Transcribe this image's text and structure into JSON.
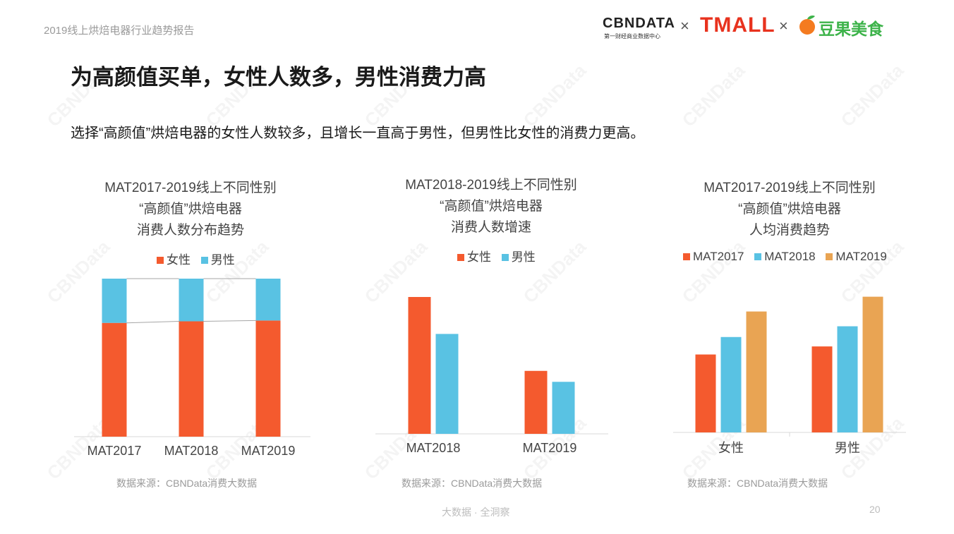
{
  "header": {
    "report_name": "2019线上烘焙电器行业趋势报告",
    "cbn_logo": "CBNDATA",
    "cbn_sub": "第一财经商业数据中心",
    "times1": "×",
    "tmall_logo": "TMALL",
    "times2": "×",
    "douguo_logo": "豆果美食"
  },
  "title": "为高颜值买单，女性人数多，男性消费力高",
  "subtitle": "选择“高颜值”烘焙电器的女性人数较多，且增长一直高于男性，但男性比女性的消费力更高。",
  "watermark": "CBNData",
  "colors": {
    "female": "#f45a2e",
    "male": "#59c2e3",
    "mat2017": "#f45a2e",
    "mat2018": "#59c2e3",
    "mat2019": "#e9a453"
  },
  "charts": [
    {
      "title_lines": [
        "MAT2017-2019线上不同性别",
        "“高颜值”烘焙电器",
        "消费人数分布趋势"
      ],
      "legend": [
        {
          "label": "女性",
          "color": "#f45a2e"
        },
        {
          "label": "男性",
          "color": "#59c2e3"
        }
      ],
      "source": "数据来源：CBNData消费大数据"
    },
    {
      "title_lines": [
        "MAT2018-2019线上不同性别",
        "“高颜值”烘焙电器",
        "消费人数增速"
      ],
      "legend": [
        {
          "label": "女性",
          "color": "#f45a2e"
        },
        {
          "label": "男性",
          "color": "#59c2e3"
        }
      ],
      "source": "数据来源：CBNData消费大数据"
    },
    {
      "title_lines": [
        "MAT2017-2019线上不同性别",
        "“高颜值”烘焙电器",
        "人均消费趋势"
      ],
      "legend": [
        {
          "label": "MAT2017",
          "color": "#f45a2e"
        },
        {
          "label": "MAT2018",
          "color": "#59c2e3"
        },
        {
          "label": "MAT2019",
          "color": "#e9a453"
        }
      ],
      "source": "数据来源：CBNData消费大数据"
    }
  ],
  "chart_data": [
    {
      "type": "bar",
      "stacked": true,
      "percent": true,
      "categories": [
        "MAT2017",
        "MAT2018",
        "MAT2019"
      ],
      "series": [
        {
          "name": "女性",
          "values": [
            72,
            73,
            73.5
          ]
        },
        {
          "name": "男性",
          "values": [
            28,
            27,
            26.5
          ]
        }
      ],
      "ylim": [
        0,
        100
      ],
      "connector_lines": true,
      "grid": false,
      "legend_position": "top"
    },
    {
      "type": "bar",
      "categories": [
        "MAT2018",
        "MAT2019"
      ],
      "series": [
        {
          "name": "女性",
          "values": [
            100,
            46
          ]
        },
        {
          "name": "男性",
          "values": [
            73,
            38
          ]
        }
      ],
      "ylim": [
        0,
        100
      ],
      "grid": false,
      "legend_position": "top"
    },
    {
      "type": "bar",
      "categories": [
        "女性",
        "男性"
      ],
      "series": [
        {
          "name": "MAT2017",
          "values": [
            58,
            64
          ]
        },
        {
          "name": "MAT2018",
          "values": [
            71,
            79
          ]
        },
        {
          "name": "MAT2019",
          "values": [
            90,
            101
          ]
        }
      ],
      "ylim": [
        0,
        105
      ],
      "grid": false,
      "legend_position": "top"
    }
  ],
  "footer": {
    "text": "大数据 · 全洞察",
    "page": "20"
  }
}
